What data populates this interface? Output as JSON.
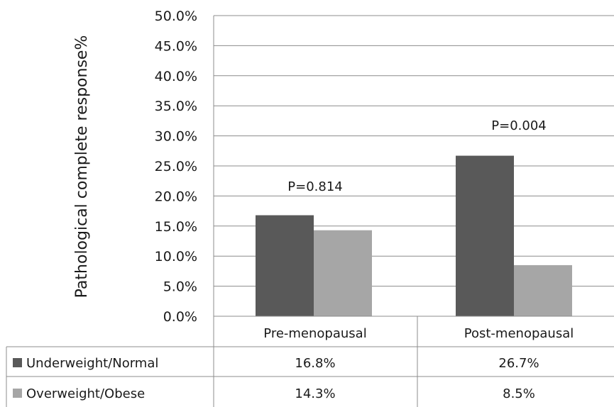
{
  "chart_data": {
    "type": "bar",
    "ylabel": "Pathological complete response%",
    "ylim": [
      0,
      50
    ],
    "yticks": [
      0,
      5,
      10,
      15,
      20,
      25,
      30,
      35,
      40,
      45,
      50
    ],
    "ytick_labels": [
      "0.0%",
      "5.0%",
      "10.0%",
      "15.0%",
      "20.0%",
      "25.0%",
      "30.0%",
      "35.0%",
      "40.0%",
      "45.0%",
      "50.0%"
    ],
    "grid": true,
    "categories": [
      "Pre-menopausal",
      "Post-menopausal"
    ],
    "series": [
      {
        "name": "Underweight/Normal",
        "values": [
          16.8,
          26.7
        ],
        "value_labels": [
          "16.8%",
          "26.7%"
        ],
        "color": "#595959"
      },
      {
        "name": "Overweight/Obese",
        "values": [
          14.3,
          8.5
        ],
        "value_labels": [
          "14.3%",
          "8.5%"
        ],
        "color": "#a6a6a6"
      }
    ],
    "annotations": [
      "P=0.814",
      "P=0.004"
    ],
    "legend": "data-table-below"
  }
}
